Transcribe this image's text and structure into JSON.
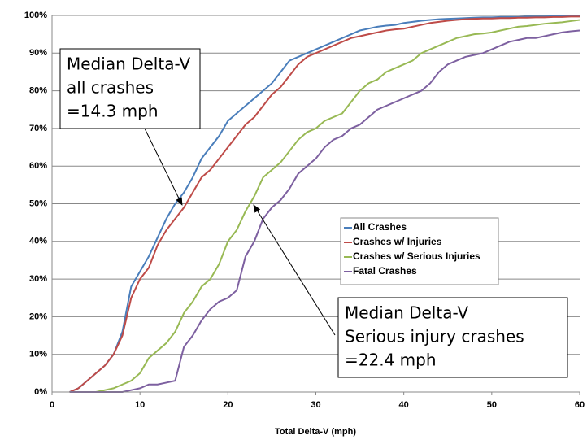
{
  "chart_data": {
    "type": "line",
    "xlabel": "Total Delta-V (mph)",
    "x": [
      2,
      3,
      4,
      5,
      6,
      7,
      8,
      9,
      10,
      11,
      12,
      13,
      14,
      15,
      16,
      17,
      18,
      19,
      20,
      21,
      22,
      23,
      24,
      25,
      26,
      27,
      28,
      29,
      30,
      31,
      32,
      33,
      34,
      35,
      36,
      37,
      38,
      39,
      40,
      41,
      42,
      43,
      44,
      45,
      46,
      47,
      48,
      49,
      50,
      51,
      52,
      53,
      54,
      55,
      56,
      57,
      58,
      59,
      60
    ],
    "series": [
      {
        "name": "All Crashes",
        "color": "#4a7ebb",
        "values": [
          0,
          1,
          3,
          5,
          7,
          10,
          16,
          28,
          32,
          36,
          41,
          46,
          50,
          53,
          57,
          62,
          65,
          68,
          72,
          74,
          76,
          78,
          80,
          82,
          85,
          88,
          89,
          90,
          91,
          92,
          93,
          94,
          95,
          96,
          96.5,
          97,
          97.3,
          97.5,
          98,
          98.3,
          98.6,
          98.8,
          99,
          99.1,
          99.2,
          99.3,
          99.4,
          99.5,
          99.5,
          99.6,
          99.6,
          99.6,
          99.7,
          99.7,
          99.7,
          99.8,
          99.8,
          99.8,
          99.8
        ]
      },
      {
        "name": "Crashes w/ Injuries",
        "color": "#be4b48",
        "values": [
          0,
          1,
          3,
          5,
          7,
          10,
          15,
          25,
          30,
          33,
          39,
          43,
          46,
          49,
          53,
          57,
          59,
          62,
          65,
          68,
          71,
          73,
          76,
          79,
          81,
          84,
          87,
          89,
          90,
          91,
          92,
          93,
          94,
          94.5,
          95,
          95.5,
          96,
          96.3,
          96.5,
          97,
          97.5,
          98,
          98.3,
          98.6,
          98.8,
          99,
          99.1,
          99.2,
          99.2,
          99.3,
          99.3,
          99.4,
          99.4,
          99.5,
          99.5,
          99.6,
          99.6,
          99.7,
          99.7
        ]
      },
      {
        "name": "Crashes w/ Serious Injuries",
        "color": "#98b954",
        "values": [
          0,
          0,
          0,
          0,
          0.5,
          1,
          2,
          3,
          5,
          9,
          11,
          13,
          16,
          21,
          24,
          28,
          30,
          34,
          40,
          43,
          48,
          52,
          57,
          59,
          61,
          64,
          67,
          69,
          70,
          72,
          73,
          74,
          77,
          80,
          82,
          83,
          85,
          86,
          87,
          88,
          90,
          91,
          92,
          93,
          94,
          94.5,
          95,
          95.2,
          95.5,
          96,
          96.5,
          97,
          97.2,
          97.5,
          97.8,
          98,
          98.2,
          98.5,
          98.8
        ]
      },
      {
        "name": "Fatal Crashes",
        "color": "#7d60a0",
        "values": [
          0,
          0,
          0,
          0,
          0,
          0,
          0,
          0.5,
          1,
          2,
          2,
          2.5,
          3,
          12,
          15,
          19,
          22,
          24,
          25,
          27,
          36,
          40,
          46,
          49,
          51,
          54,
          58,
          60,
          62,
          65,
          67,
          68,
          70,
          71,
          73,
          75,
          76,
          77,
          78,
          79,
          80,
          82,
          85,
          87,
          88,
          89,
          89.5,
          90,
          91,
          92,
          93,
          93.5,
          94,
          94,
          94.5,
          95,
          95.5,
          95.8,
          96
        ]
      }
    ],
    "xlim": [
      0,
      60
    ],
    "xticks": [
      0,
      10,
      20,
      30,
      40,
      50,
      60
    ],
    "ylim": [
      0,
      100
    ],
    "yticks": [
      {
        "value": 0,
        "label": "0%"
      },
      {
        "value": 10,
        "label": "10%"
      },
      {
        "value": 20,
        "label": "20%"
      },
      {
        "value": 30,
        "label": "30%"
      },
      {
        "value": 40,
        "label": "40%"
      },
      {
        "value": 50,
        "label": "50%"
      },
      {
        "value": 60,
        "label": "60%"
      },
      {
        "value": 70,
        "label": "70%"
      },
      {
        "value": 80,
        "label": "80%"
      },
      {
        "value": 90,
        "label": "90%"
      },
      {
        "value": 100,
        "label": "100%"
      }
    ],
    "grid": true,
    "legend": "right",
    "annotations": [
      {
        "lines": [
          "Median Delta-V",
          "all crashes",
          "=14.3 mph"
        ]
      },
      {
        "lines": [
          "Median Delta-V",
          "Serious injury crashes",
          "=22.4 mph"
        ]
      }
    ]
  }
}
